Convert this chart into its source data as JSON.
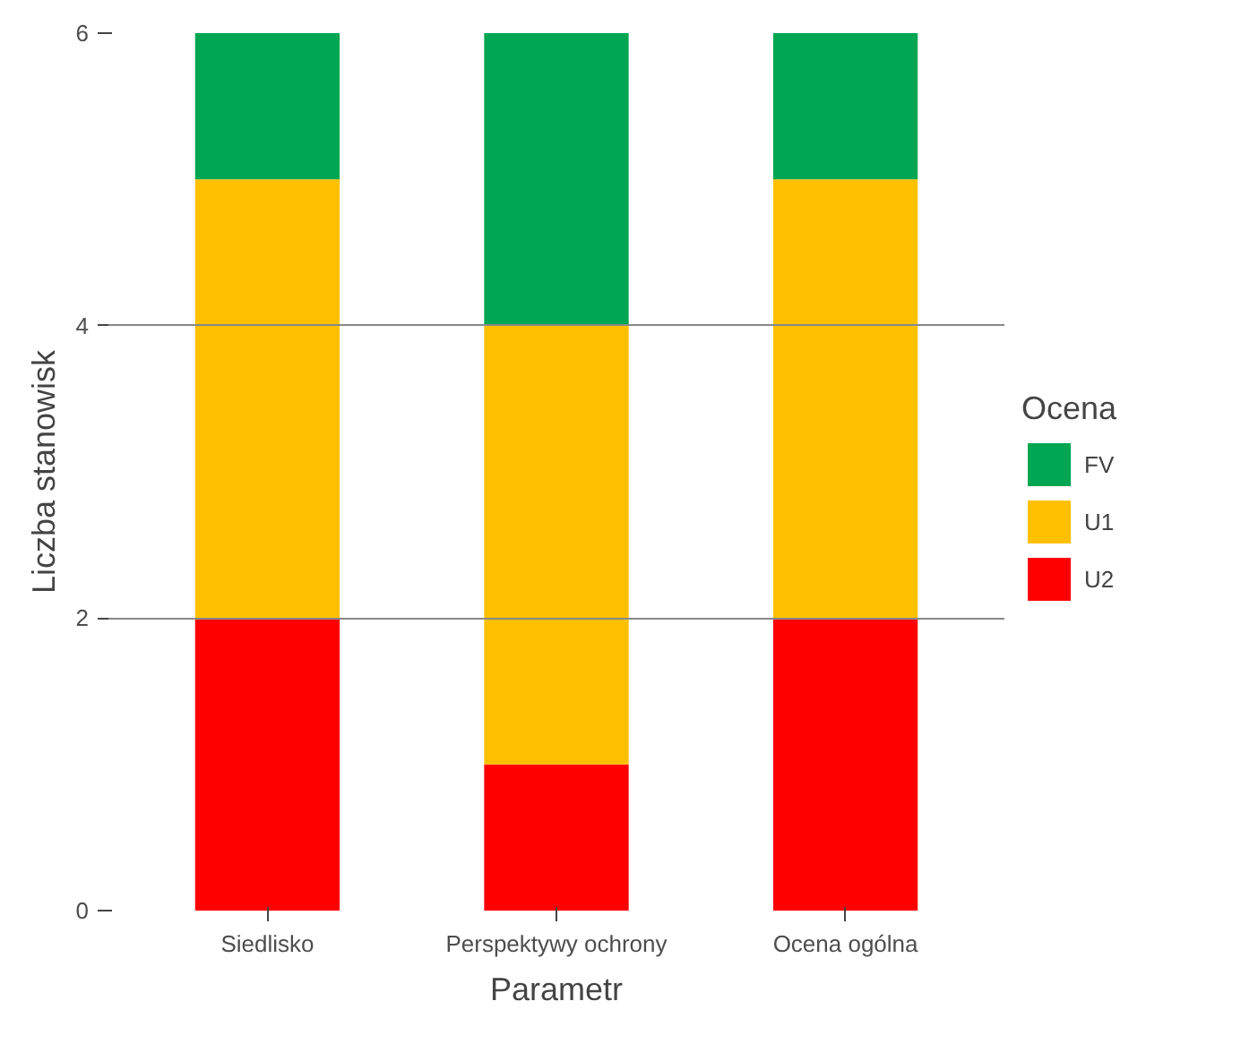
{
  "chart_data": {
    "type": "bar",
    "stacked": true,
    "xlabel": "Parametr",
    "ylabel": "Liczba stanowisk",
    "legend_title": "Ocena",
    "categories": [
      "Siedlisko",
      "Perspektywy ochrony",
      "Ocena ogólna"
    ],
    "series": [
      {
        "name": "U2",
        "color": "#ff0000",
        "values": [
          2,
          1,
          2
        ]
      },
      {
        "name": "U1",
        "color": "#ffc000",
        "values": [
          3,
          3,
          3
        ]
      },
      {
        "name": "FV",
        "color": "#00a651",
        "values": [
          1,
          2,
          1
        ]
      }
    ],
    "ylim": [
      0,
      6
    ],
    "yticks": [
      0,
      2,
      4,
      6
    ],
    "grid": "y",
    "legend": "right"
  }
}
